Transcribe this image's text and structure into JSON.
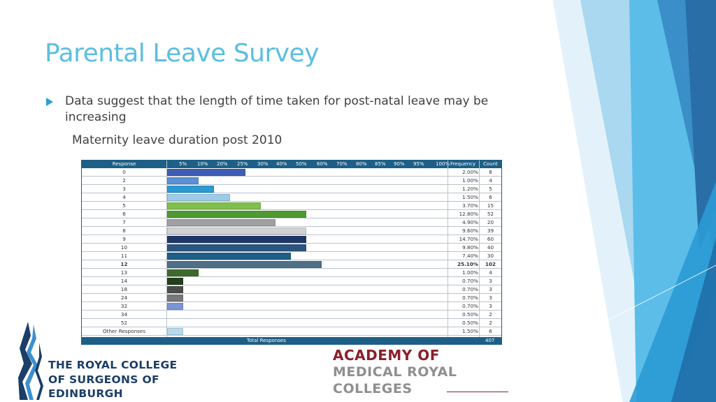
{
  "slide": {
    "title": "Parental Leave Survey",
    "bullet": "Data suggest that the length of time taken for post-natal leave may be increasing",
    "subtitle": "Maternity leave duration post 2010"
  },
  "chart_data": {
    "type": "bar",
    "orientation": "horizontal",
    "columns": {
      "response": "Response",
      "frequency": "Frequency",
      "count": "Count"
    },
    "axis_ticks": [
      "5%",
      "10%",
      "20%",
      "25%",
      "30%",
      "40%",
      "50%",
      "60%",
      "70%",
      "80%",
      "85%",
      "90%",
      "95%",
      "100%"
    ],
    "rows": [
      {
        "response": "0",
        "frequency": "2.00%",
        "count": "8",
        "color": "#3f5cb4",
        "bar": 0.255
      },
      {
        "response": "2",
        "frequency": "1.00%",
        "count": "4",
        "color": "#5b8fd6",
        "bar": 0.103
      },
      {
        "response": "3",
        "frequency": "1.20%",
        "count": "5",
        "color": "#2b9ad4",
        "bar": 0.152
      },
      {
        "response": "4",
        "frequency": "1.50%",
        "count": "6",
        "color": "#9ccbe8",
        "bar": 0.206
      },
      {
        "response": "5",
        "frequency": "3.70%",
        "count": "15",
        "color": "#7fbf4c",
        "bar": 0.305
      },
      {
        "response": "6",
        "frequency": "12.80%",
        "count": "52",
        "color": "#4e9a2f",
        "bar": 0.455
      },
      {
        "response": "7",
        "frequency": "4.90%",
        "count": "20",
        "color": "#a0a0a0",
        "bar": 0.354
      },
      {
        "response": "8",
        "frequency": "9.60%",
        "count": "39",
        "color": "#d2d2d2",
        "bar": 0.455
      },
      {
        "response": "9",
        "frequency": "14.70%",
        "count": "60",
        "color": "#1f3768",
        "bar": 0.455
      },
      {
        "response": "10",
        "frequency": "9.80%",
        "count": "40",
        "color": "#2a5580",
        "bar": 0.455
      },
      {
        "response": "11",
        "frequency": "7.40%",
        "count": "30",
        "color": "#1e5f86",
        "bar": 0.405
      },
      {
        "response": "12",
        "frequency": "25.10%",
        "count": "102",
        "color": "#4f6f86",
        "bar": 0.505,
        "bold": true
      },
      {
        "response": "13",
        "frequency": "1.00%",
        "count": "4",
        "color": "#3f6a2a",
        "bar": 0.103
      },
      {
        "response": "14",
        "frequency": "0.70%",
        "count": "3",
        "color": "#24401a",
        "bar": 0.052
      },
      {
        "response": "18",
        "frequency": "0.70%",
        "count": "3",
        "color": "#4b4b4b",
        "bar": 0.052
      },
      {
        "response": "24",
        "frequency": "0.70%",
        "count": "3",
        "color": "#777777",
        "bar": 0.052
      },
      {
        "response": "32",
        "frequency": "0.70%",
        "count": "3",
        "color": "#7b94d6",
        "bar": 0.052
      },
      {
        "response": "34",
        "frequency": "0.50%",
        "count": "2",
        "color": "#ffffff",
        "bar": 0
      },
      {
        "response": "52",
        "frequency": "0.50%",
        "count": "2",
        "color": "#ffffff",
        "bar": 0
      },
      {
        "response": "Other Responses",
        "frequency": "1.50%",
        "count": "6",
        "color": "#b6dbef",
        "bar": 0.052
      }
    ],
    "footer": {
      "label": "Total Responses",
      "count": "407"
    }
  },
  "logos": {
    "rcs": [
      "THE ROYAL COLLEGE",
      "OF SURGEONS OF",
      "EDINBURGH"
    ],
    "amrc": [
      "ACADEMY OF",
      "MEDICAL ROYAL",
      "COLLEGES"
    ]
  },
  "colors": {
    "title": "#5bbfdf",
    "header": "#1d5f86",
    "accent": "#2a9fd8"
  }
}
